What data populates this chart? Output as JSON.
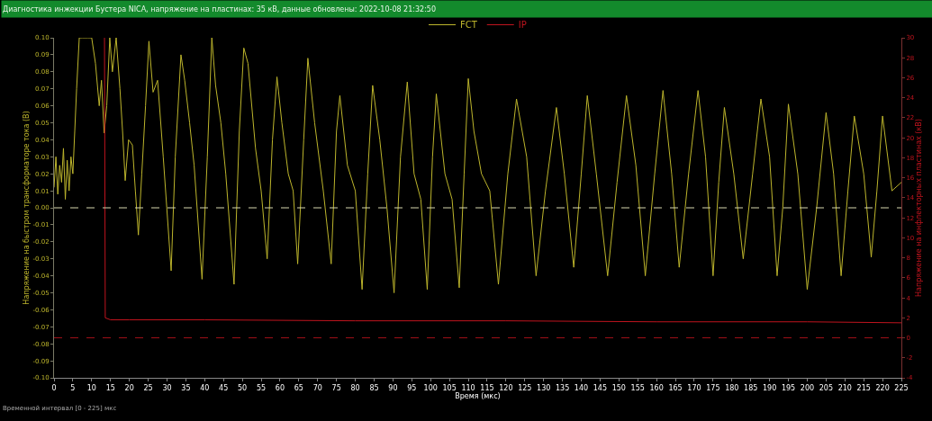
{
  "chart_data": {
    "type": "line",
    "title": "Диагностика инжекции Бустера NICA, напряжение на пластинах: 35 кВ, данные обновлены: 2022-10-08 21:32:50",
    "xlabel": "Время (мкс)",
    "ylabel": "Напряжение на быстром трансформаторе тока (В)",
    "y2label": "Напряжение на инфлекторных пластинах (кВ)",
    "xlim": [
      0,
      225
    ],
    "xticks": [
      0,
      5,
      10,
      15,
      20,
      25,
      30,
      35,
      40,
      45,
      50,
      55,
      60,
      65,
      70,
      75,
      80,
      85,
      90,
      95,
      100,
      105,
      110,
      115,
      120,
      125,
      130,
      135,
      140,
      145,
      150,
      155,
      160,
      165,
      170,
      175,
      180,
      185,
      190,
      195,
      200,
      205,
      210,
      215,
      220,
      225
    ],
    "ylim": [
      -0.1,
      0.1
    ],
    "yticks": [
      {
        "value": 0.1,
        "label": "0.10"
      },
      {
        "value": 0.09,
        "label": "0.09"
      },
      {
        "value": 0.08,
        "label": "0.08"
      },
      {
        "value": 0.07,
        "label": "0.07"
      },
      {
        "value": 0.06,
        "label": "0.06"
      },
      {
        "value": 0.05,
        "label": "0.05"
      },
      {
        "value": 0.04,
        "label": "0.04"
      },
      {
        "value": 0.03,
        "label": "0.03"
      },
      {
        "value": 0.02,
        "label": "0.02"
      },
      {
        "value": 0.01,
        "label": "0.01"
      },
      {
        "value": 0,
        "label": "0.00"
      },
      {
        "value": -0.01,
        "label": "-0.01"
      },
      {
        "value": -0.02,
        "label": "-0.02"
      },
      {
        "value": -0.03,
        "label": "-0.03"
      },
      {
        "value": -0.04,
        "label": "-0.04"
      },
      {
        "value": -0.05,
        "label": "-0.05"
      },
      {
        "value": -0.06,
        "label": "-0.06"
      },
      {
        "value": -0.07,
        "label": "-0.07"
      },
      {
        "value": -0.08,
        "label": "-0.08"
      },
      {
        "value": -0.09,
        "label": "-0.09"
      },
      {
        "value": -0.1,
        "label": "-0.10"
      }
    ],
    "y2lim": [
      -4,
      30
    ],
    "y2ticks": [
      -4,
      -2,
      0,
      2,
      4,
      6,
      8,
      10,
      12,
      14,
      16,
      18,
      20,
      22,
      24,
      26,
      28,
      30
    ],
    "legend": "top",
    "grid": false,
    "ref_lines": [
      {
        "axis": "y",
        "value": 0,
        "color": "#d8d8b0",
        "line_style": "dashed"
      },
      {
        "axis": "y2",
        "value": 0,
        "color": "#a01018",
        "line_style": "dashed"
      }
    ],
    "annotations": [
      "Временной интервал [0 - 225] мкс"
    ],
    "series": [
      {
        "name": "FCT",
        "color": "#bdb52c",
        "x": [
          0,
          0.5,
          1,
          1.5,
          2,
          2.5,
          3,
          3.5,
          4,
          4.5,
          5,
          5.5,
          6,
          6.7,
          7.5,
          9,
          10,
          11,
          12,
          12.6,
          13.3,
          14,
          14.8,
          15.5,
          16.5,
          17.5,
          18.2,
          18.9,
          19.8,
          20.8,
          21.6,
          22.4,
          23.3,
          24.3,
          25.2,
          26.3,
          27.5,
          29,
          31.1,
          32.2,
          33.7,
          34.7,
          36,
          37.2,
          39.3,
          40.7,
          41.9,
          42.9,
          44.3,
          45.6,
          47.8,
          49.2,
          50.4,
          51.5,
          53.5,
          55,
          56.6,
          58,
          59.2,
          60.5,
          62.2,
          63.5,
          64.7,
          66.3,
          67.4,
          69.2,
          71.5,
          73.6,
          75,
          75.9,
          77.9,
          80,
          81.8,
          83.3,
          84.6,
          86.5,
          88.4,
          90.3,
          92,
          93.8,
          95.6,
          97.4,
          99.1,
          100.5,
          101.5,
          103.8,
          105.7,
          107.6,
          108.9,
          110,
          111.5,
          113.5,
          115.7,
          118,
          120.5,
          122.8,
          125.5,
          128,
          130.5,
          133.4,
          135.5,
          138,
          140,
          141.6,
          144,
          147,
          149.5,
          152,
          154.5,
          157,
          159.5,
          161.7,
          164,
          166,
          168.5,
          171,
          173,
          175,
          176.5,
          178,
          180.5,
          183,
          185.5,
          187.7,
          190,
          192,
          193.5,
          195,
          197.5,
          200,
          202.5,
          205,
          207,
          209,
          210.8,
          212.5,
          215,
          217,
          218.5,
          220,
          222.5,
          225
        ],
        "values": [
          0.012,
          0.03,
          0.008,
          0.025,
          0.015,
          0.035,
          0.005,
          0.028,
          0.01,
          0.03,
          0.02,
          0.045,
          0.07,
          0.1,
          0.1,
          0.1,
          0.1,
          0.085,
          0.06,
          0.075,
          0.044,
          0.06,
          0.1,
          0.08,
          0.1,
          0.07,
          0.045,
          0.016,
          0.04,
          0.037,
          0.01,
          -0.016,
          0.02,
          0.06,
          0.098,
          0.068,
          0.075,
          0.03,
          -0.037,
          0.03,
          0.09,
          0.075,
          0.05,
          0.025,
          -0.042,
          0.03,
          0.1,
          0.072,
          0.05,
          0.02,
          -0.045,
          0.045,
          0.094,
          0.085,
          0.035,
          0.01,
          -0.03,
          0.04,
          0.077,
          0.05,
          0.02,
          0.01,
          -0.033,
          0.04,
          0.088,
          0.05,
          0.01,
          -0.033,
          0.045,
          0.066,
          0.025,
          0.01,
          -0.048,
          0.02,
          0.072,
          0.04,
          0.0,
          -0.05,
          0.03,
          0.074,
          0.02,
          0.005,
          -0.048,
          0.03,
          0.067,
          0.02,
          0.005,
          -0.047,
          0.02,
          0.076,
          0.045,
          0.02,
          0.01,
          -0.045,
          0.02,
          0.064,
          0.03,
          -0.04,
          0.01,
          0.059,
          0.02,
          -0.035,
          0.02,
          0.066,
          0.02,
          -0.04,
          0.015,
          0.066,
          0.025,
          -0.04,
          0.02,
          0.069,
          0.02,
          -0.035,
          0.02,
          0.069,
          0.03,
          -0.04,
          0.015,
          0.059,
          0.02,
          -0.03,
          0.02,
          0.064,
          0.03,
          -0.04,
          0.0,
          0.061,
          0.02,
          -0.048,
          0.0,
          0.056,
          0.02,
          -0.04,
          0.01,
          0.054,
          0.02,
          -0.029,
          0.01,
          0.054,
          0.01,
          0.015
        ]
      },
      {
        "name": "IP",
        "color": "#c0141e",
        "axis": "y2",
        "x": [
          13.4,
          13.6,
          15,
          20,
          40,
          80,
          120,
          160,
          200,
          225
        ],
        "values": [
          30,
          2.0,
          1.8,
          1.8,
          1.8,
          1.7,
          1.7,
          1.6,
          1.6,
          1.5
        ]
      }
    ]
  }
}
